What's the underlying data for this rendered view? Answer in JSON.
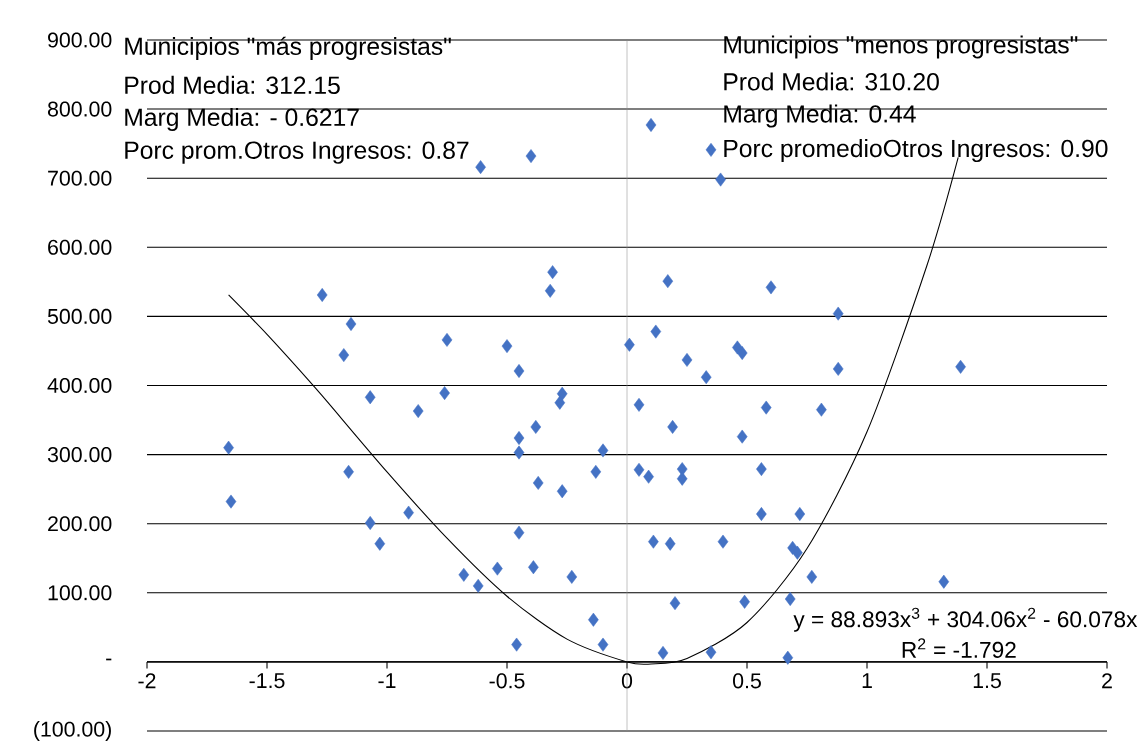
{
  "chart_data": {
    "type": "scatter",
    "series": [
      {
        "type": "scatter",
        "color": "#4472c4",
        "marker": "diamond",
        "x": [
          -1.66,
          -1.65,
          -1.27,
          -1.15,
          -1.18,
          -1.16,
          -1.07,
          -1.07,
          -1.03,
          -0.87,
          -0.91,
          -0.75,
          -0.76,
          -0.68,
          -0.62,
          -0.54,
          -0.61,
          -0.4,
          -0.5,
          -0.45,
          -0.45,
          -0.45,
          -0.45,
          -0.46,
          -0.38,
          -0.37,
          -0.39,
          -0.31,
          -0.32,
          -0.27,
          -0.28,
          -0.27,
          -0.23,
          -0.1,
          -0.13,
          -0.14,
          -0.1,
          0.1,
          0.01,
          0.12,
          0.05,
          0.17,
          0.25,
          0.33,
          0.19,
          0.05,
          0.09,
          0.23,
          0.23,
          0.11,
          0.18,
          0.2,
          0.15,
          0.35,
          0.39,
          0.4,
          0.35,
          0.46,
          0.48,
          0.58,
          0.81,
          0.48,
          0.56,
          0.56,
          0.72,
          0.69,
          0.71,
          0.77,
          1.32,
          0.49,
          0.68,
          0.67,
          0.6,
          0.88,
          0.88,
          1.39
        ],
        "values": [
          310,
          232,
          531,
          489,
          444,
          275,
          383,
          201,
          171,
          363,
          216,
          466,
          389,
          126,
          110,
          135,
          716,
          732,
          457,
          421,
          324,
          303,
          187,
          25,
          340,
          259,
          137,
          564,
          537,
          388,
          375,
          247,
          123,
          306,
          275,
          61,
          25,
          777,
          459,
          478,
          372,
          551,
          437,
          412,
          340,
          278,
          268,
          279,
          265,
          174,
          171,
          85,
          13,
          741,
          698,
          174,
          14,
          455,
          447,
          368,
          365,
          326,
          279,
          214,
          214,
          165,
          158,
          123,
          116,
          87,
          91,
          6,
          542,
          504,
          424,
          427
        ]
      },
      {
        "type": "line",
        "color": "#000000",
        "marker": "none",
        "x": [
          -1.66,
          -1.5,
          -1.33,
          -1.25,
          -1.0,
          -0.75,
          -0.5,
          -0.25,
          0,
          0.1,
          0.25,
          0.5,
          0.75,
          1.0,
          1.25,
          1.38
        ],
        "values": [
          531,
          474,
          409,
          377,
          275,
          179,
          95,
          33,
          0,
          -3,
          5,
          57,
          164,
          333,
          574,
          730
        ]
      }
    ],
    "xlim": [
      -2,
      2
    ],
    "ylim": [
      -100,
      900
    ],
    "xticks": [
      -2,
      -1.5,
      -1,
      -0.5,
      0,
      0.5,
      1,
      1.5,
      2
    ],
    "yticks": [
      {
        "value": -100,
        "label": "(100.00)"
      },
      {
        "value": 0,
        "label": "-"
      },
      {
        "value": 100,
        "label": "100.00"
      },
      {
        "value": 200,
        "label": "200.00"
      },
      {
        "value": 300,
        "label": "300.00"
      },
      {
        "value": 400,
        "label": "400.00"
      },
      {
        "value": 500,
        "label": "500.00"
      },
      {
        "value": 600,
        "label": "600.00"
      },
      {
        "value": 700,
        "label": "700.00"
      },
      {
        "value": 800,
        "label": "800.00"
      },
      {
        "value": 900,
        "label": "900.00"
      }
    ],
    "grid": "y",
    "ref_lines": [
      {
        "axis": "x",
        "value": 0,
        "color": "#8c8c8c"
      }
    ],
    "annotations": [
      "Municipios \"más progresistas\"",
      "Prod Media: 312.15",
      "Marg Media:  - 0.6217",
      "Porc  prom.Otros Ingresos:  0.87",
      "Municipios \"menos progresistas\"",
      "Prod Media: 310.20",
      "Marg Media:  0.44",
      "Porc promedioOtros Ingresos: 0.90",
      "y = 88.893x$^{3}$ + 304.06x$^{2}$ - 60.078x",
      "R$^{2}$ = -1.792"
    ]
  }
}
